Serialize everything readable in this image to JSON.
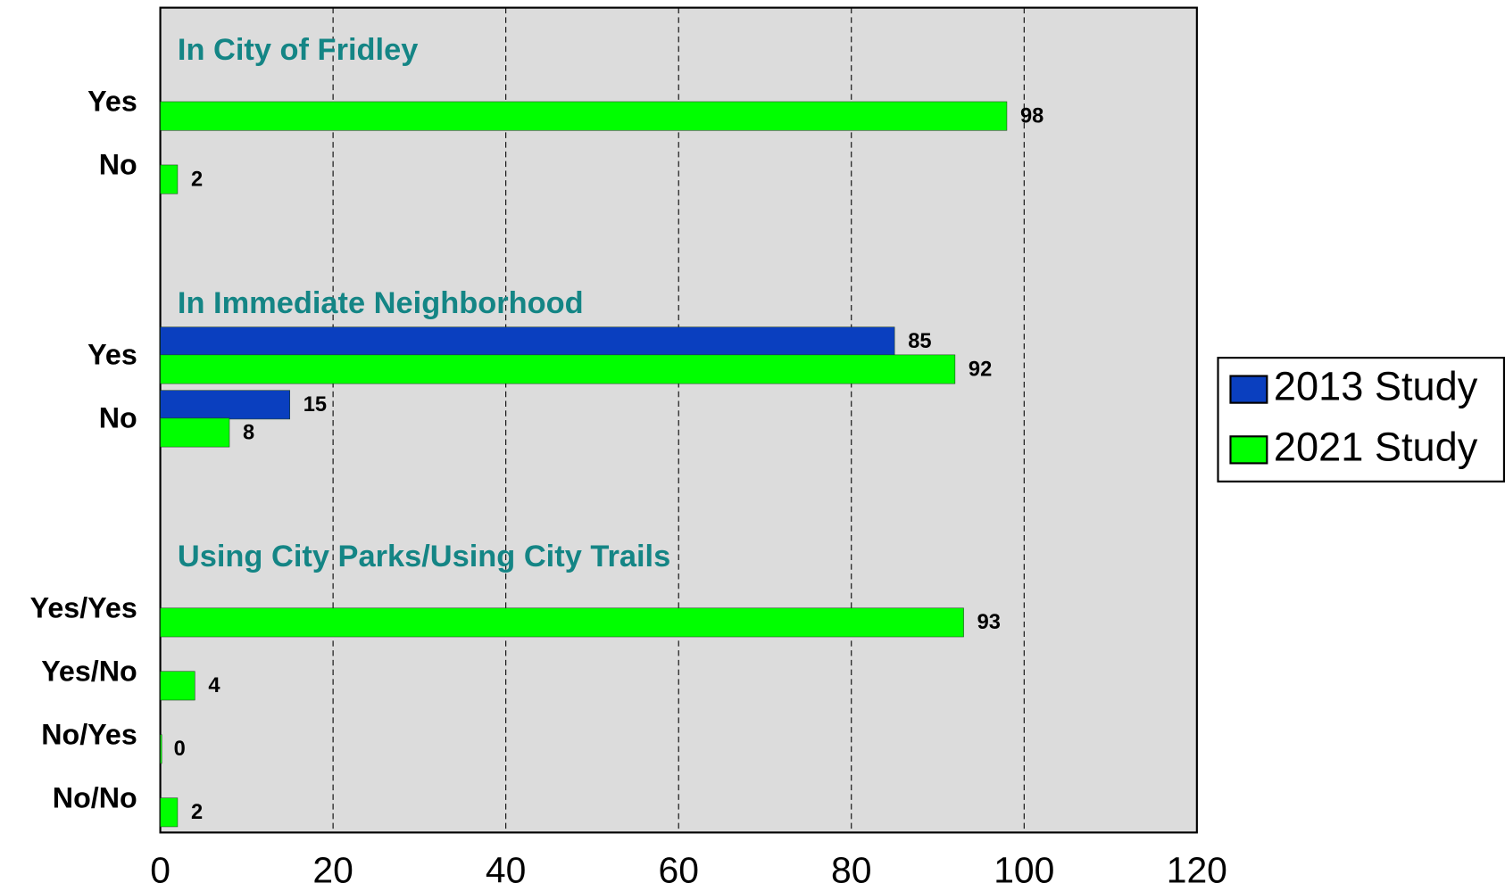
{
  "chart_data": {
    "type": "bar",
    "orientation": "horizontal",
    "categories": [
      "Yes",
      "No",
      "Yes",
      "No",
      "Yes/Yes",
      "Yes/No",
      "No/Yes",
      "No/No"
    ],
    "groups": [
      {
        "title": "In City of Fridley",
        "size": 2
      },
      {
        "title": "In Immediate Neighborhood",
        "size": 2
      },
      {
        "title": "Using City Parks/Using City Trails",
        "size": 4
      }
    ],
    "series": [
      {
        "name": "2013 Study",
        "color": "#0a3fbf",
        "values": [
          null,
          null,
          85,
          15,
          null,
          null,
          null,
          null
        ]
      },
      {
        "name": "2021 Study",
        "color": "#00ff00",
        "values": [
          98,
          2,
          92,
          8,
          93,
          4,
          0,
          2
        ]
      }
    ],
    "xlim": [
      0,
      120
    ],
    "xticks": [
      0,
      20,
      40,
      60,
      80,
      100,
      120
    ],
    "grid": true,
    "legend": "right"
  }
}
